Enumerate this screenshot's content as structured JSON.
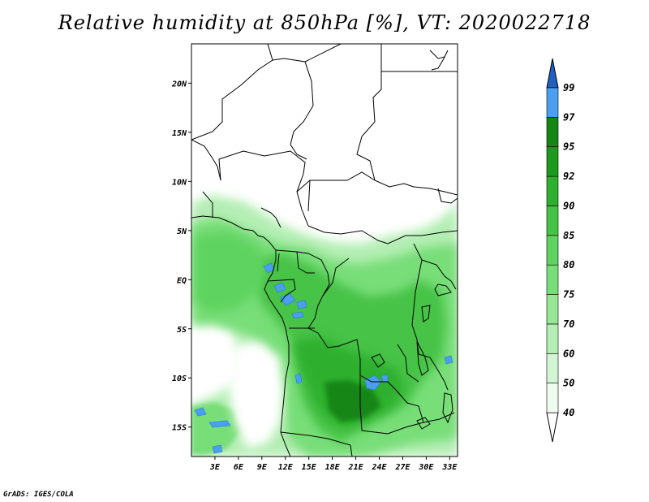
{
  "title": "Relative humidity at 850hPa [%], VT: 2020022718",
  "credit": "GrADS: IGES/COLA",
  "map": {
    "lon_range": [
      0,
      34
    ],
    "lat_range": [
      -18,
      24
    ],
    "lat_ticks": [
      {
        "value": 20,
        "label": "20N"
      },
      {
        "value": 15,
        "label": "15N"
      },
      {
        "value": 10,
        "label": "10N"
      },
      {
        "value": 5,
        "label": "5N"
      },
      {
        "value": 0,
        "label": "EQ"
      },
      {
        "value": -5,
        "label": "5S"
      },
      {
        "value": -10,
        "label": "10S"
      },
      {
        "value": -15,
        "label": "15S"
      }
    ],
    "lon_ticks": [
      {
        "value": 3,
        "label": "3E"
      },
      {
        "value": 6,
        "label": "6E"
      },
      {
        "value": 9,
        "label": "9E"
      },
      {
        "value": 12,
        "label": "12E"
      },
      {
        "value": 15,
        "label": "15E"
      },
      {
        "value": 18,
        "label": "18E"
      },
      {
        "value": 21,
        "label": "21E"
      },
      {
        "value": 24,
        "label": "24E"
      },
      {
        "value": 27,
        "label": "27E"
      },
      {
        "value": 30,
        "label": "30E"
      },
      {
        "value": 33,
        "label": "33E"
      }
    ]
  },
  "colorbar": {
    "levels": [
      {
        "label": "40",
        "color": "#f0fbf0"
      },
      {
        "label": "50",
        "color": "#d4f5d4"
      },
      {
        "label": "60",
        "color": "#b4eeb4"
      },
      {
        "label": "70",
        "color": "#96e696"
      },
      {
        "label": "75",
        "color": "#78de78"
      },
      {
        "label": "80",
        "color": "#5fd35f"
      },
      {
        "label": "85",
        "color": "#46c346"
      },
      {
        "label": "90",
        "color": "#2eb02e"
      },
      {
        "label": "92",
        "color": "#1d9a1d"
      },
      {
        "label": "95",
        "color": "#138613"
      },
      {
        "label": "97",
        "color": "#4a9ff0"
      },
      {
        "label": "99",
        "color": "#2a78d8"
      }
    ],
    "below_color": "#ffffff",
    "above_color": "#1e5fbf"
  }
}
